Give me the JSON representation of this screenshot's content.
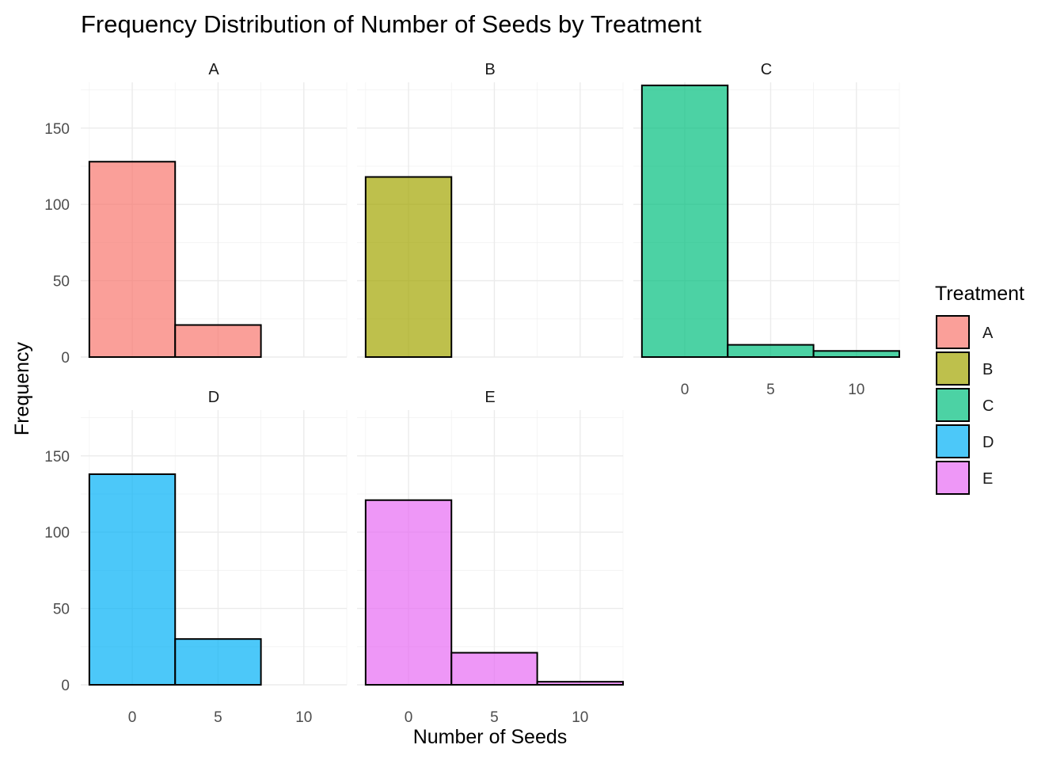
{
  "chart_data": {
    "type": "bar",
    "title": "Frequency Distribution of Number of Seeds by Treatment",
    "xlabel": "Number of Seeds",
    "ylabel": "Frequency",
    "bin_width": 5,
    "bin_centers": [
      0,
      5,
      10
    ],
    "xlim": [
      -3,
      12.5
    ],
    "ylim": [
      0,
      180
    ],
    "x_ticks": [
      0,
      5,
      10
    ],
    "y_ticks": [
      0,
      50,
      100,
      150
    ],
    "grid": true,
    "facets": [
      {
        "name": "A",
        "color": "#F8766D",
        "values": [
          128,
          21,
          0
        ]
      },
      {
        "name": "B",
        "color": "#A3A500",
        "values": [
          118,
          0,
          0
        ]
      },
      {
        "name": "C",
        "color": "#00BF7D",
        "values": [
          178,
          8,
          4
        ]
      },
      {
        "name": "D",
        "color": "#00B0F6",
        "values": [
          138,
          30,
          0
        ]
      },
      {
        "name": "E",
        "color": "#E76BF3",
        "values": [
          121,
          21,
          2
        ]
      }
    ],
    "legend": {
      "title": "Treatment",
      "position": "right",
      "items": [
        "A",
        "B",
        "C",
        "D",
        "E"
      ]
    }
  }
}
